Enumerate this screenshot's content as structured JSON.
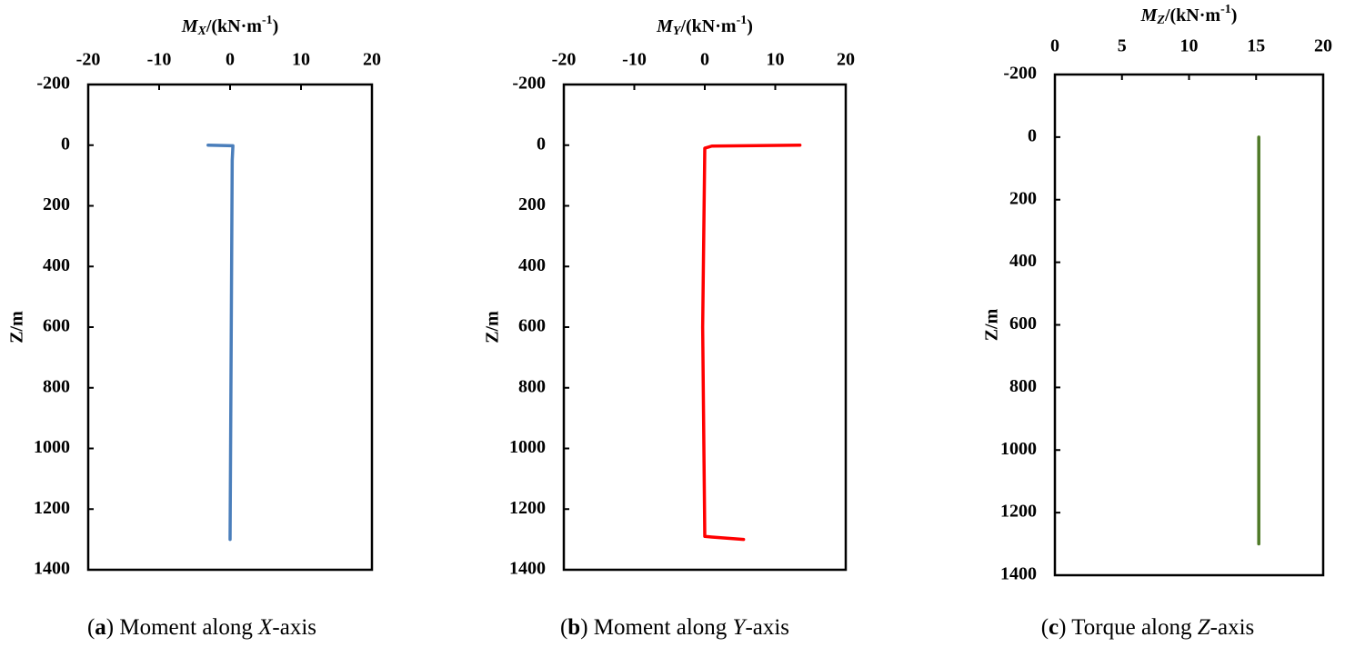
{
  "chart_data": [
    {
      "type": "line",
      "x_label": [
        "M",
        "X",
        "/(kN·m",
        "-1",
        ")"
      ],
      "y_label": "Z/m",
      "caption": [
        "(",
        "a",
        ") Moment along ",
        "X",
        "-axis"
      ],
      "color": "#4a7ebb",
      "x": [
        -3.1,
        0.4,
        0.3,
        0
      ],
      "values": [
        0,
        2,
        50,
        1300
      ],
      "xlim": [
        -20,
        20
      ],
      "xticks": [
        -20,
        -10,
        0,
        10,
        20
      ],
      "ylim": [
        -200,
        1400
      ],
      "yticks": [
        -200,
        0,
        200,
        400,
        600,
        800,
        1000,
        1200,
        1400
      ],
      "y_inverted": true,
      "grid": false
    },
    {
      "type": "line",
      "x_label": [
        "M",
        "Y",
        "/(kN·m",
        "-1",
        ")"
      ],
      "y_label": "Z/m",
      "caption": [
        "(",
        "b",
        ") Moment along ",
        "Y",
        "-axis"
      ],
      "color": "#ff0000",
      "x": [
        13.5,
        1,
        0,
        -0.3,
        0,
        1,
        5.5
      ],
      "values": [
        0,
        3,
        10,
        600,
        1290,
        1292,
        1300
      ],
      "xlim": [
        -20,
        20
      ],
      "xticks": [
        -20,
        -10,
        0,
        10,
        20
      ],
      "ylim": [
        -200,
        1400
      ],
      "yticks": [
        -200,
        0,
        200,
        400,
        600,
        800,
        1000,
        1200,
        1400
      ],
      "y_inverted": true,
      "grid": false
    },
    {
      "type": "line",
      "x_label": [
        "M",
        "Z",
        "/(kN·m",
        "-1",
        ")"
      ],
      "y_label": "Z/m",
      "caption": [
        "(",
        "c",
        ") Torque along ",
        "Z",
        "-axis"
      ],
      "color": "#4f7a28",
      "x": [
        15.2,
        15.2
      ],
      "values": [
        0,
        1300
      ],
      "xlim": [
        0,
        20
      ],
      "xticks": [
        0,
        5,
        10,
        15,
        20
      ],
      "ylim": [
        -200,
        1400
      ],
      "yticks": [
        -200,
        0,
        200,
        400,
        600,
        800,
        1000,
        1200,
        1400
      ],
      "y_inverted": true,
      "grid": false
    }
  ]
}
